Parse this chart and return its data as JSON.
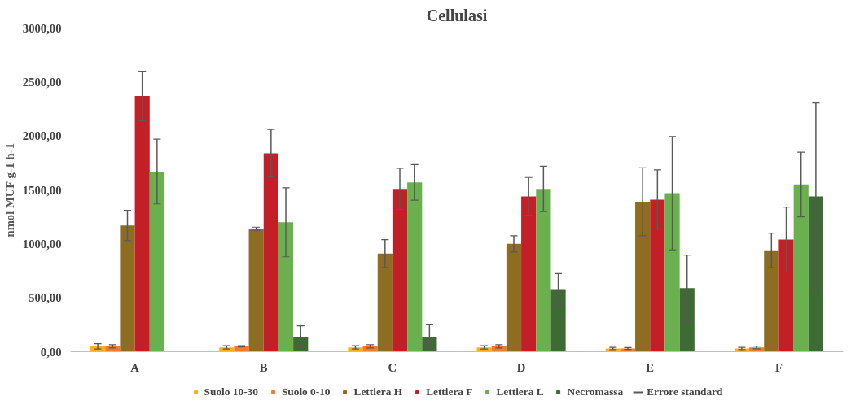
{
  "chart_data": {
    "type": "bar",
    "title": "Cellulasi",
    "ylabel": "nmol MUF g-1 h-1",
    "categories": [
      "A",
      "B",
      "C",
      "D",
      "E",
      "F"
    ],
    "series": [
      {
        "name": "Suolo 10-30",
        "color": "#f5b324",
        "values": [
          50,
          40,
          40,
          40,
          30,
          30
        ],
        "errors": [
          25,
          15,
          15,
          15,
          10,
          10
        ]
      },
      {
        "name": "Suolo 0-10",
        "color": "#ed7d31",
        "values": [
          50,
          50,
          50,
          50,
          30,
          40
        ],
        "errors": [
          15,
          5,
          15,
          15,
          8,
          12
        ]
      },
      {
        "name": "Lettiera H",
        "color": "#8e6c22",
        "values": [
          1170,
          1140,
          910,
          1000,
          1390,
          940
        ],
        "errors": [
          140,
          15,
          130,
          75,
          315,
          160
        ]
      },
      {
        "name": "Lettiera F",
        "color": "#c21f26",
        "values": [
          2370,
          1840,
          1510,
          1440,
          1410,
          1040
        ],
        "errors": [
          230,
          220,
          190,
          175,
          275,
          300
        ]
      },
      {
        "name": "Lettiera L",
        "color": "#6ab04f",
        "values": [
          1670,
          1200,
          1570,
          1510,
          1470,
          1550
        ],
        "errors": [
          300,
          320,
          165,
          210,
          525,
          300
        ]
      },
      {
        "name": "Necromassa",
        "color": "#3e6a33",
        "values": [
          null,
          140,
          140,
          580,
          590,
          1440
        ],
        "errors": [
          null,
          100,
          115,
          145,
          305,
          865
        ]
      }
    ],
    "ylim": [
      0,
      3000
    ],
    "yticks": [
      {
        "value": 0,
        "label": "0,00"
      },
      {
        "value": 500,
        "label": "500,00"
      },
      {
        "value": 1000,
        "label": "1000,00"
      },
      {
        "value": 1500,
        "label": "1500,00"
      },
      {
        "value": 2000,
        "label": "2000,00"
      },
      {
        "value": 2500,
        "label": "2500,00"
      },
      {
        "value": 3000,
        "label": "3000,00"
      }
    ],
    "grid": false,
    "legend": "bottom",
    "annotations": [
      "Errore standard"
    ]
  }
}
